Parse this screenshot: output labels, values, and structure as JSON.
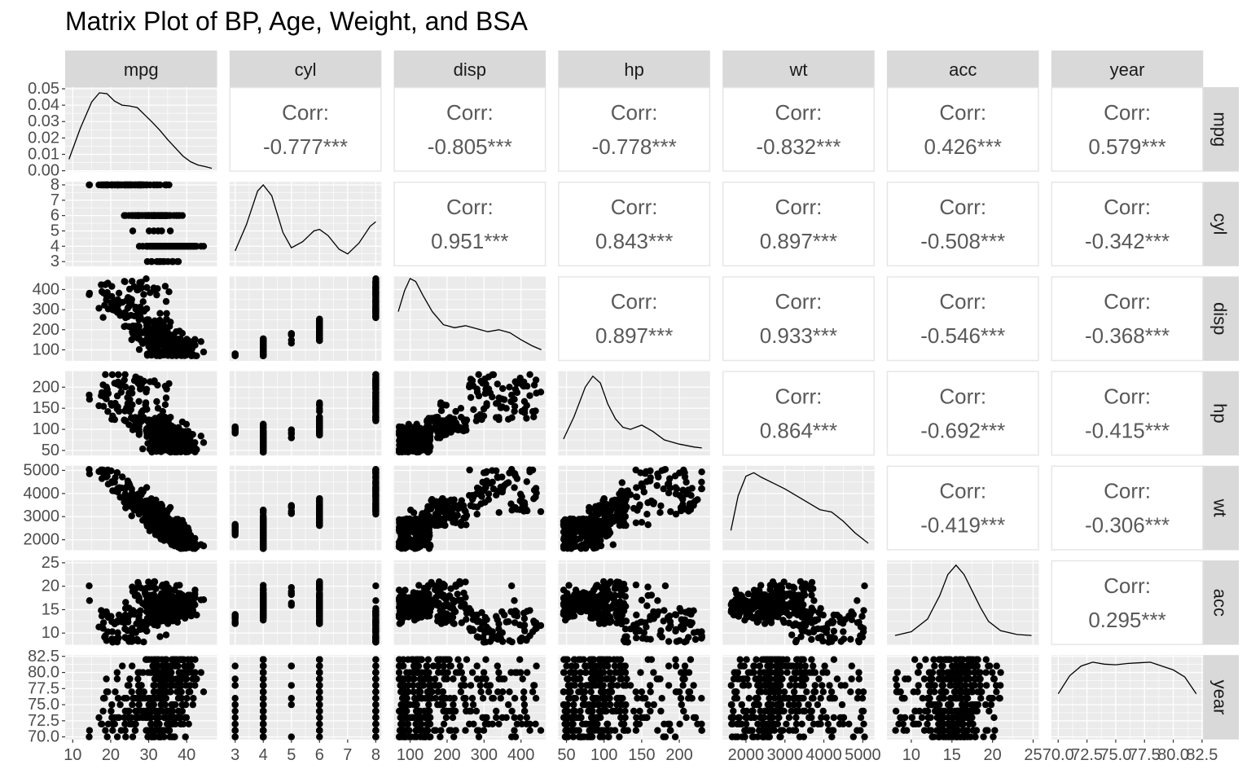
{
  "chart_data": {
    "type": "scatter",
    "title": "Matrix Plot of BP, Age, Weight, and BSA",
    "variables": [
      "mpg",
      "cyl",
      "disp",
      "hp",
      "wt",
      "acc",
      "year"
    ],
    "corr_label": "Corr:",
    "correlations": [
      {
        "row": "mpg",
        "col": "cyl",
        "value": "-0.777***"
      },
      {
        "row": "mpg",
        "col": "disp",
        "value": "-0.805***"
      },
      {
        "row": "mpg",
        "col": "hp",
        "value": "-0.778***"
      },
      {
        "row": "mpg",
        "col": "wt",
        "value": "-0.832***"
      },
      {
        "row": "mpg",
        "col": "acc",
        "value": "0.426***"
      },
      {
        "row": "mpg",
        "col": "year",
        "value": "0.579***"
      },
      {
        "row": "cyl",
        "col": "disp",
        "value": "0.951***"
      },
      {
        "row": "cyl",
        "col": "hp",
        "value": "0.843***"
      },
      {
        "row": "cyl",
        "col": "wt",
        "value": "0.897***"
      },
      {
        "row": "cyl",
        "col": "acc",
        "value": "-0.508***"
      },
      {
        "row": "cyl",
        "col": "year",
        "value": "-0.342***"
      },
      {
        "row": "disp",
        "col": "hp",
        "value": "0.897***"
      },
      {
        "row": "disp",
        "col": "wt",
        "value": "0.933***"
      },
      {
        "row": "disp",
        "col": "acc",
        "value": "-0.546***"
      },
      {
        "row": "disp",
        "col": "year",
        "value": "-0.368***"
      },
      {
        "row": "hp",
        "col": "wt",
        "value": "0.864***"
      },
      {
        "row": "hp",
        "col": "acc",
        "value": "-0.692***"
      },
      {
        "row": "hp",
        "col": "year",
        "value": "-0.415***"
      },
      {
        "row": "wt",
        "col": "acc",
        "value": "-0.419***"
      },
      {
        "row": "wt",
        "col": "year",
        "value": "-0.306***"
      },
      {
        "row": "acc",
        "col": "year",
        "value": "0.295***"
      }
    ],
    "x_axes": [
      {
        "var": "mpg",
        "range": [
          8,
          48
        ],
        "ticks": [
          10,
          20,
          30,
          40
        ],
        "tick_labels": [
          "10",
          "20",
          "30",
          "40"
        ]
      },
      {
        "var": "cyl",
        "range": [
          2.8,
          8.2
        ],
        "ticks": [
          3,
          4,
          5,
          6,
          7,
          8
        ],
        "tick_labels": [
          "3",
          "4",
          "5",
          "6",
          "7",
          "8"
        ]
      },
      {
        "var": "disp",
        "range": [
          56,
          467
        ],
        "ticks": [
          100,
          200,
          300,
          400
        ],
        "tick_labels": [
          "100",
          "200",
          "300",
          "400"
        ]
      },
      {
        "var": "hp",
        "range": [
          39,
          241
        ],
        "ticks": [
          50,
          100,
          150,
          200
        ],
        "tick_labels": [
          "50",
          "100",
          "150",
          "200"
        ]
      },
      {
        "var": "wt",
        "range": [
          1400,
          5300
        ],
        "ticks": [
          2000,
          3000,
          4000,
          5000
        ],
        "tick_labels": [
          "2000",
          "3000",
          "4000",
          "5000"
        ]
      },
      {
        "var": "acc",
        "range": [
          7,
          25.7
        ],
        "ticks": [
          10,
          15,
          20,
          25
        ],
        "tick_labels": [
          "10",
          "15",
          "20",
          "25"
        ]
      },
      {
        "var": "year",
        "range": [
          69.4,
          82.6
        ],
        "ticks": [
          70,
          72.5,
          75,
          77.5,
          80,
          82.5
        ],
        "tick_labels": [
          "70.0",
          "72.5",
          "75.0",
          "77.5",
          "80.0",
          "82.5"
        ]
      }
    ],
    "y_axes": [
      {
        "var": "mpg",
        "range": [
          -0.0005,
          0.051
        ],
        "ticks": [
          0,
          0.01,
          0.02,
          0.03,
          0.04,
          0.05
        ],
        "tick_labels": [
          "0.00",
          "0.01",
          "0.02",
          "0.03",
          "0.04",
          "0.05"
        ]
      },
      {
        "var": "cyl",
        "range": [
          2.7,
          8.2
        ],
        "ticks": [
          3,
          4,
          5,
          6,
          7,
          8
        ],
        "tick_labels": [
          "3",
          "4",
          "5",
          "6",
          "7",
          "8"
        ]
      },
      {
        "var": "disp",
        "range": [
          45,
          465
        ],
        "ticks": [
          100,
          200,
          300,
          400
        ],
        "tick_labels": [
          "100",
          "200",
          "300",
          "400"
        ]
      },
      {
        "var": "hp",
        "range": [
          38,
          238
        ],
        "ticks": [
          50,
          100,
          150,
          200
        ],
        "tick_labels": [
          "50",
          "100",
          "150",
          "200"
        ]
      },
      {
        "var": "wt",
        "range": [
          1550,
          5200
        ],
        "ticks": [
          2000,
          3000,
          4000,
          5000
        ],
        "tick_labels": [
          "2000",
          "3000",
          "4000",
          "5000"
        ]
      },
      {
        "var": "acc",
        "range": [
          7.5,
          25.5
        ],
        "ticks": [
          10,
          15,
          20,
          25
        ],
        "tick_labels": [
          "10",
          "15",
          "20",
          "25"
        ]
      },
      {
        "var": "year",
        "range": [
          69.6,
          82.7
        ],
        "ticks": [
          70,
          72.5,
          75,
          77.5,
          80,
          82.5
        ],
        "tick_labels": [
          "70.0",
          "72.5",
          "75.0",
          "77.5",
          "80.0",
          "82.5"
        ]
      }
    ],
    "densities": [
      {
        "var": "mpg",
        "x": [
          9,
          12,
          15,
          17,
          19,
          21,
          23,
          25,
          27,
          29,
          31,
          33,
          35,
          37,
          39,
          41,
          43,
          45,
          46.6
        ],
        "y": [
          0.007,
          0.026,
          0.042,
          0.0475,
          0.047,
          0.0425,
          0.04,
          0.0395,
          0.0385,
          0.034,
          0.0295,
          0.0245,
          0.019,
          0.014,
          0.009,
          0.0055,
          0.0035,
          0.0025,
          0.0015
        ]
      },
      {
        "var": "cyl",
        "x": [
          3,
          3.4,
          3.8,
          4.0,
          4.3,
          4.7,
          5.0,
          5.4,
          5.8,
          6.0,
          6.3,
          6.7,
          7.0,
          7.4,
          7.8,
          8.0
        ],
        "y": [
          3.7,
          5.4,
          7.6,
          8.0,
          7.3,
          4.9,
          3.9,
          4.3,
          5.0,
          5.1,
          4.7,
          3.8,
          3.5,
          4.2,
          5.3,
          5.6
        ]
      },
      {
        "var": "disp",
        "x": [
          68,
          85,
          100,
          115,
          135,
          160,
          190,
          220,
          250,
          280,
          310,
          340,
          370,
          400,
          430,
          455
        ],
        "y": [
          290,
          395,
          455,
          440,
          370,
          290,
          225,
          210,
          220,
          205,
          190,
          200,
          185,
          150,
          120,
          100
        ]
      },
      {
        "var": "hp",
        "x": [
          46,
          60,
          75,
          85,
          95,
          105,
          115,
          125,
          135,
          150,
          165,
          180,
          200,
          220,
          230
        ],
        "y": [
          77,
          130,
          200,
          226,
          210,
          160,
          125,
          105,
          100,
          110,
          95,
          75,
          65,
          58,
          56
        ]
      },
      {
        "var": "wt",
        "x": [
          1613,
          1800,
          2000,
          2200,
          2400,
          2700,
          3000,
          3300,
          3600,
          3900,
          4200,
          4500,
          4800,
          5140
        ],
        "y": [
          2400,
          3900,
          4750,
          4900,
          4700,
          4450,
          4200,
          3900,
          3600,
          3300,
          3200,
          2800,
          2300,
          1850
        ]
      },
      {
        "var": "acc",
        "x": [
          8,
          10,
          12,
          13.5,
          14.5,
          15.5,
          16.5,
          17.5,
          18.5,
          19.5,
          21,
          23,
          24.8
        ],
        "y": [
          9.5,
          10.3,
          13.0,
          18.0,
          22.5,
          24.5,
          22.5,
          19.0,
          15.5,
          12.5,
          10.5,
          9.7,
          9.5
        ]
      },
      {
        "var": "year",
        "x": [
          70,
          71,
          72,
          73,
          74,
          75,
          76,
          77,
          78,
          79,
          80,
          81,
          82
        ],
        "y": [
          76.7,
          79.5,
          81.0,
          81.6,
          81.3,
          81.2,
          81.4,
          81.5,
          81.6,
          81.0,
          80.4,
          79.3,
          76.7
        ]
      }
    ]
  }
}
